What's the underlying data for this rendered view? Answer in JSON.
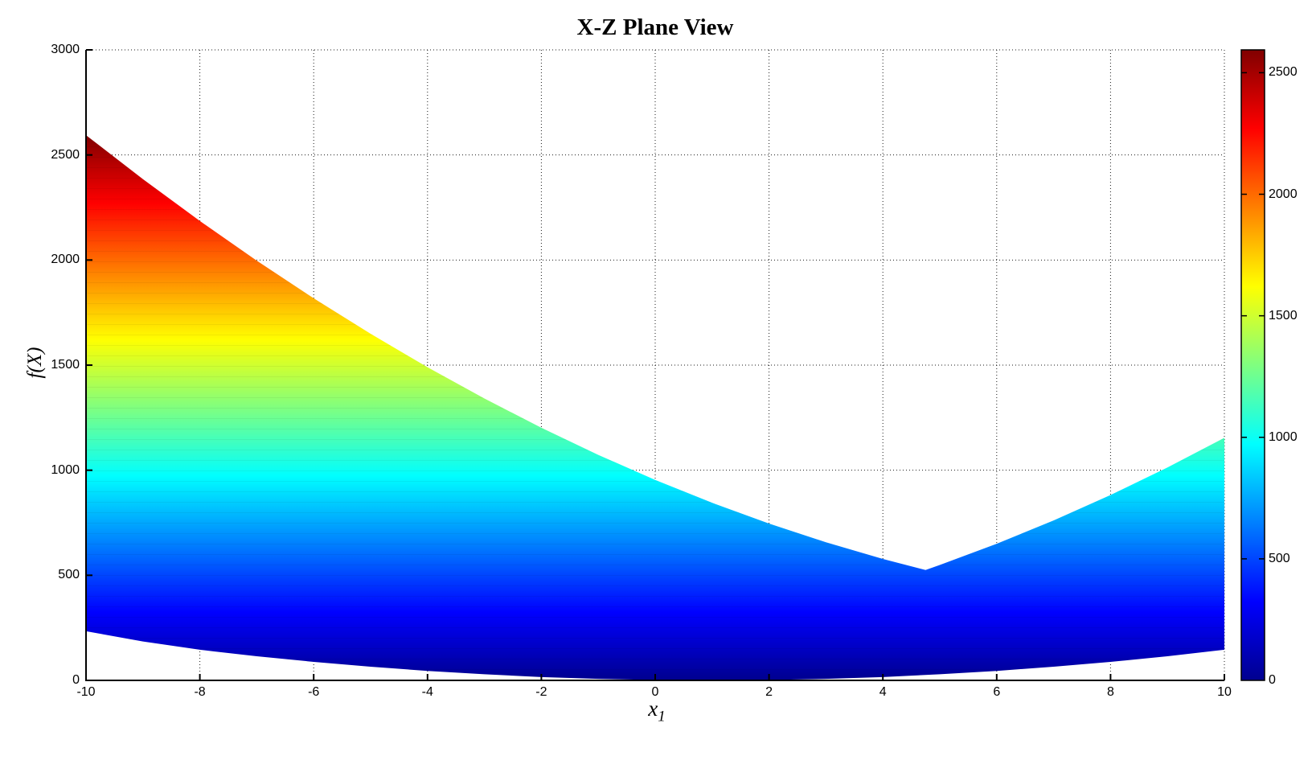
{
  "figure": {
    "background": "#FFFFFF"
  },
  "chart_data": {
    "type": "area",
    "title": "X-Z Plane View",
    "xlabel": "x_1",
    "xlabel_base": "x",
    "xlabel_sub": "1",
    "ylabel": "f(X)",
    "xlim": [
      -10,
      10
    ],
    "ylim": [
      0,
      3000
    ],
    "grid": "dotted",
    "x_tick_values": [
      -10,
      -8,
      -6,
      -4,
      -2,
      0,
      2,
      4,
      6,
      8,
      10
    ],
    "x_tick_labels": [
      "-10",
      "-8",
      "-6",
      "-4",
      "-2",
      "0",
      "2",
      "4",
      "6",
      "8",
      "10"
    ],
    "y_tick_values": [
      0,
      500,
      1000,
      1500,
      2000,
      2500,
      3000
    ],
    "y_tick_labels": [
      "0",
      "500",
      "1000",
      "1500",
      "2000",
      "2500",
      "3000"
    ],
    "surface_region": {
      "upper_envelope": [
        [
          -10,
          2594
        ],
        [
          -9,
          2385
        ],
        [
          -8,
          2186
        ],
        [
          -7,
          1997
        ],
        [
          -6,
          1818
        ],
        [
          -5,
          1649
        ],
        [
          -4,
          1490
        ],
        [
          -3,
          1341
        ],
        [
          -2,
          1202
        ],
        [
          -1,
          1073
        ],
        [
          0,
          954
        ],
        [
          1,
          845
        ],
        [
          2,
          746
        ],
        [
          3,
          657
        ],
        [
          4,
          578
        ],
        [
          4.75,
          525
        ],
        [
          5,
          549
        ],
        [
          6,
          650
        ],
        [
          7,
          761
        ],
        [
          8,
          882
        ],
        [
          9,
          1013
        ],
        [
          10,
          1154
        ]
      ],
      "lower_envelope": [
        [
          -10,
          234
        ],
        [
          -9,
          185
        ],
        [
          -8,
          146
        ],
        [
          -7.75,
          138
        ],
        [
          -7,
          115
        ],
        [
          -6,
          88
        ],
        [
          -5,
          65
        ],
        [
          -4,
          45
        ],
        [
          -3,
          29
        ],
        [
          -2,
          16
        ],
        [
          -1,
          7
        ],
        [
          0,
          2
        ],
        [
          1,
          0
        ],
        [
          2,
          2
        ],
        [
          3,
          7
        ],
        [
          4,
          16
        ],
        [
          5,
          29
        ],
        [
          6,
          45
        ],
        [
          7,
          65
        ],
        [
          8,
          88
        ],
        [
          9,
          115
        ],
        [
          10,
          146
        ]
      ]
    },
    "colorbar": {
      "min": 0,
      "max": 2594,
      "tick_values": [
        0,
        500,
        1000,
        1500,
        2000,
        2500
      ],
      "tick_labels": [
        "0",
        "500",
        "1000",
        "1500",
        "2000",
        "2500"
      ],
      "colormap": "jet",
      "stops": [
        {
          "at": 0.0,
          "color": "#00008F"
        },
        {
          "at": 0.125,
          "color": "#0000FF"
        },
        {
          "at": 0.375,
          "color": "#00FFFF"
        },
        {
          "at": 0.625,
          "color": "#FFFF00"
        },
        {
          "at": 0.875,
          "color": "#FF0000"
        },
        {
          "at": 1.0,
          "color": "#800000"
        }
      ]
    },
    "colors": {
      "axis": "#000000",
      "grid": "#1A1A1A",
      "text": "#000000"
    }
  }
}
